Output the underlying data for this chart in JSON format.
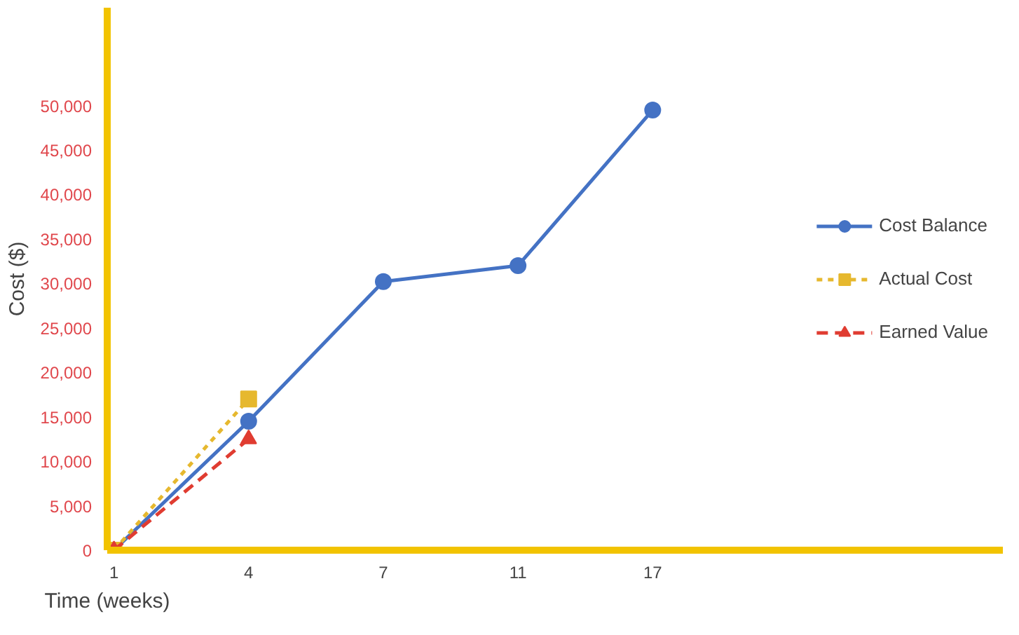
{
  "chart_data": {
    "type": "line",
    "xlabel": "Time (weeks)",
    "ylabel": "Cost ($)",
    "categories": [
      "1",
      "4",
      "7",
      "11",
      "17"
    ],
    "series": [
      {
        "name": "Cost Balance",
        "color": "#4472c4",
        "values": [
          0,
          14500,
          30200,
          32000,
          49500
        ],
        "marker": "circle",
        "line_style": "solid"
      },
      {
        "name": "Actual Cost",
        "color": "#e6b82e",
        "values": [
          0,
          17000,
          null,
          null,
          null
        ],
        "marker": "square",
        "line_style": "dotted"
      },
      {
        "name": "Earned Value",
        "color": "#e03c31",
        "values": [
          0,
          12500,
          null,
          null,
          null
        ],
        "marker": "triangle",
        "line_style": "dashed"
      }
    ],
    "ylim": [
      0,
      61000
    ],
    "yticks": [
      0,
      {
        "value": 5000,
        "label": "5,000"
      },
      {
        "value": 10000,
        "label": "10,000"
      },
      {
        "value": 15000,
        "label": "15,000"
      },
      {
        "value": 20000,
        "label": "20,000"
      },
      {
        "value": 25000,
        "label": "25,000"
      },
      {
        "value": 30000,
        "label": "30,000"
      },
      {
        "value": 35000,
        "label": "35,000"
      },
      {
        "value": 40000,
        "label": "40,000"
      },
      {
        "value": 45000,
        "label": "45,000"
      },
      {
        "value": 50000,
        "label": "50,000"
      }
    ],
    "grid": false,
    "legend": "right"
  }
}
